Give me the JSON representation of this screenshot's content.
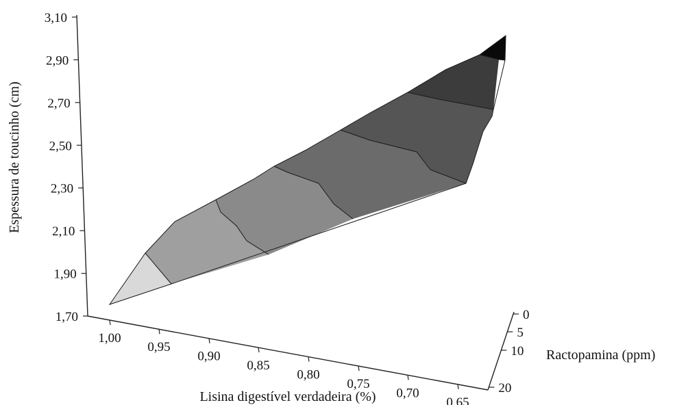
{
  "chart_data": {
    "type": "surface3d",
    "x_axis": {
      "label": "Lisina digestível verdadeira (%)",
      "ticks": [
        "1,00",
        "0,95",
        "0,90",
        "0,85",
        "0,80",
        "0,75",
        "0,70",
        "0,65"
      ],
      "range": [
        1.0,
        0.65
      ]
    },
    "y_axis": {
      "label": "Espessura de toucinho (cm)",
      "ticks": [
        "1,70",
        "1,90",
        "2,10",
        "2,30",
        "2,50",
        "2,70",
        "2,90",
        "3,10"
      ],
      "range": [
        1.7,
        3.1
      ]
    },
    "z_axis": {
      "label": "Ractopamina (ppm)",
      "ticks": [
        "0",
        "5",
        "10",
        "20"
      ],
      "values": [
        0,
        5,
        10,
        20
      ]
    },
    "surface_bands": [
      {
        "range": [
          1.7,
          1.9
        ],
        "color": "#d9d9d9"
      },
      {
        "range": [
          1.9,
          2.1
        ],
        "color": "#9f9f9f"
      },
      {
        "range": [
          2.1,
          2.3
        ],
        "color": "#8a8a8a"
      },
      {
        "range": [
          2.3,
          2.5
        ],
        "color": "#6b6b6b"
      },
      {
        "range": [
          2.5,
          2.7
        ],
        "color": "#555555"
      },
      {
        "range": [
          2.7,
          2.9
        ],
        "color": "#3c3c3c"
      },
      {
        "range": [
          2.9,
          3.1
        ],
        "color": "#0a0a0a"
      }
    ]
  }
}
